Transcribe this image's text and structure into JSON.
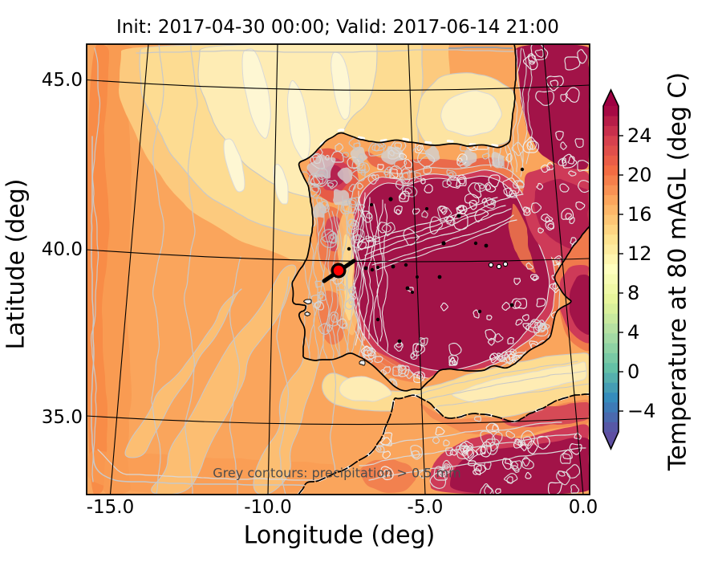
{
  "figure": {
    "title": "Init: 2017-04-30 00:00; Valid: 2017-06-14 21:00",
    "xlabel": "Longitude (deg)",
    "ylabel": "Latitude (deg)",
    "annotation": "Grey contours: precipitation > 0.5 mm",
    "background_color": "#ffffff"
  },
  "axes": {
    "xticks": [
      {
        "label": "-15.0"
      },
      {
        "label": "-10.0"
      },
      {
        "label": "-5.0"
      },
      {
        "label": "0.0"
      }
    ],
    "yticks": [
      {
        "label": "45.0"
      },
      {
        "label": "40.0"
      },
      {
        "label": "35.0"
      }
    ]
  },
  "colorbar": {
    "label": "Temperature at 80 mAGL (deg C)",
    "ticks": [
      {
        "label": "24",
        "value": 24
      },
      {
        "label": "20",
        "value": 20
      },
      {
        "label": "16",
        "value": 16
      },
      {
        "label": "12",
        "value": 12
      },
      {
        "label": "8",
        "value": 8
      },
      {
        "label": "4",
        "value": 4
      },
      {
        "label": "0",
        "value": 0
      },
      {
        "label": "−4",
        "value": -4
      }
    ],
    "min": -6,
    "max": 27,
    "band_step": 1,
    "extend": "both",
    "colormap": "Spectral_r",
    "spectral_anchors": [
      "#9E0142",
      "#D53E4F",
      "#F46D43",
      "#FDAE61",
      "#FEE08B",
      "#FFFFBF",
      "#E6F598",
      "#ABDDA4",
      "#66C2A5",
      "#3288BD",
      "#5E4FA2"
    ]
  },
  "overlays": {
    "station_marker": {
      "color": "#ff0000",
      "edge": "#000000",
      "approx_lon": -7.8,
      "approx_lat": 39.7
    },
    "precip_contour_color": "#c8c8c8",
    "coastline_color": "#000000",
    "graticule_color": "#000000"
  },
  "chart_data": {
    "type": "heatmap",
    "title": "Init: 2017-04-30 00:00; Valid: 2017-06-14 21:00",
    "xlabel": "Longitude (deg)",
    "ylabel": "Latitude (deg)",
    "variable": "Temperature at 80 mAGL (deg C)",
    "xticks": [
      -15.0,
      -10.0,
      -5.0,
      0.0
    ],
    "yticks": [
      35.0,
      40.0,
      45.0
    ],
    "colorbar_ticks": [
      -4,
      0,
      4,
      8,
      12,
      16,
      20,
      24
    ],
    "colorbar_range": [
      -6,
      27
    ],
    "contour_interval_degC": 1,
    "colormap": "Spectral_r",
    "region": "Iberian Peninsula and surroundings",
    "overlays": [
      "grey precipitation contours > 0.5 mm",
      "coastlines",
      "lat-lon graticule",
      "red station marker near Lisbon (approx lon -7.8, lat 39.7)"
    ],
    "legend_position": "right colorbar, extended both ends"
  }
}
